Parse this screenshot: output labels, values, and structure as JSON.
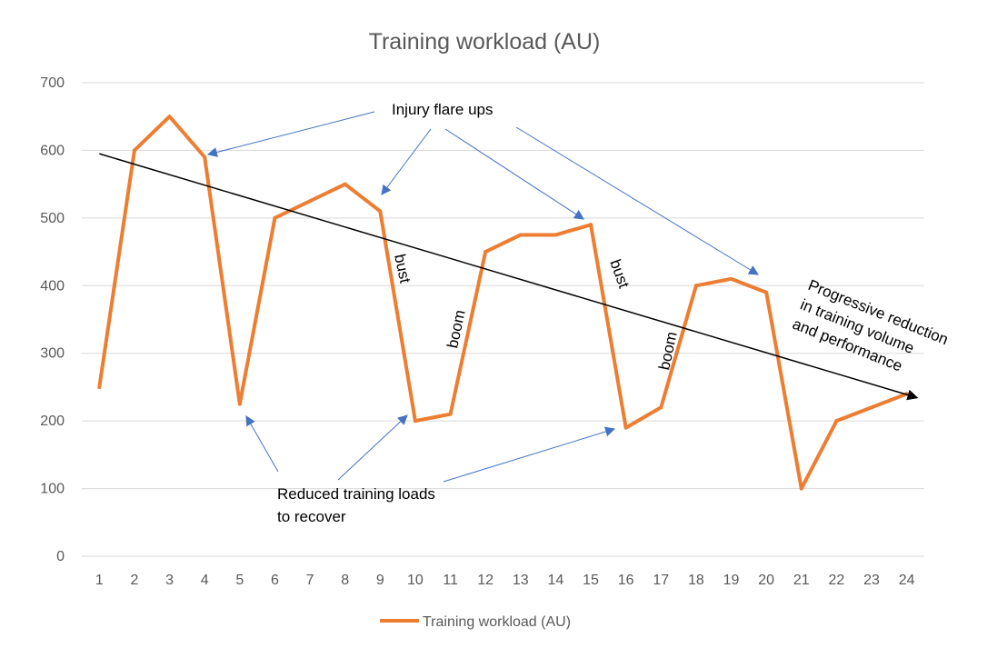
{
  "chart_data": {
    "type": "line",
    "title": "Training workload (AU)",
    "xlabel": "",
    "ylabel": "",
    "x": [
      1,
      2,
      3,
      4,
      5,
      6,
      7,
      8,
      9,
      10,
      11,
      12,
      13,
      14,
      15,
      16,
      17,
      18,
      19,
      20,
      21,
      22,
      23,
      24
    ],
    "series": [
      {
        "name": "Training workload (AU)",
        "color": "#ed7d31",
        "values": [
          250,
          600,
          650,
          590,
          225,
          500,
          525,
          550,
          510,
          200,
          210,
          450,
          475,
          475,
          490,
          190,
          220,
          400,
          410,
          390,
          100,
          200,
          220,
          240
        ]
      }
    ],
    "ylim": [
      0,
      700
    ],
    "yticks": [
      0,
      100,
      200,
      300,
      400,
      500,
      600,
      700
    ],
    "grid": true,
    "legend": "bottom",
    "trend_line": {
      "from": [
        1,
        595
      ],
      "to": [
        24,
        245
      ],
      "color": "#000000"
    },
    "annotations": {
      "injury": "Injury flare ups",
      "reduced_line1": "Reduced training loads",
      "reduced_line2": "to recover",
      "progressive_line1": "Progressive reduction",
      "progressive_line2": "in training volume",
      "progressive_line3": "and performance",
      "bust1": "bust",
      "boom1": "boom",
      "bust2": "bust",
      "boom2": "boom"
    },
    "arrow_color": "#4472c4"
  }
}
